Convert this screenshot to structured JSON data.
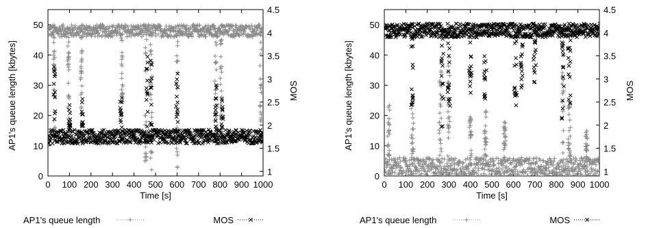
{
  "chart_data": [
    {
      "type": "scatter",
      "xlabel": "Time [s]",
      "ylabel": "AP1's queue length [kbytes]",
      "y2label": "MOS",
      "xlim": [
        0,
        1000
      ],
      "ylim": [
        0,
        55
      ],
      "y2lim": [
        0.9,
        4.5
      ],
      "xticks": [
        "0",
        "100",
        "200",
        "300",
        "400",
        "500",
        "600",
        "700",
        "800",
        "900",
        "1000"
      ],
      "yticks": [
        "0",
        "10",
        "20",
        "30",
        "40",
        "50"
      ],
      "y2ticks": [
        "1",
        "1.5",
        "2",
        "2.5",
        "3",
        "3.5",
        "4",
        "4.5"
      ],
      "legend": [
        {
          "name": "AP1's queue length",
          "color": "#8a8a8a",
          "marker": "+"
        },
        {
          "name": "MOS",
          "color": "#000000",
          "marker": "x"
        }
      ],
      "legend_position": "bottom",
      "series": [
        {
          "name": "AP1's queue length",
          "axis": "left",
          "typical_range": [
            46,
            50
          ],
          "dips": [
            {
              "time": 30,
              "low": 12
            },
            {
              "time": 95,
              "low": 15
            },
            {
              "time": 155,
              "low": 20
            },
            {
              "time": 345,
              "low": 20
            },
            {
              "time": 455,
              "low": 0
            },
            {
              "time": 480,
              "low": 0
            },
            {
              "time": 600,
              "low": 0
            },
            {
              "time": 780,
              "low": 15
            },
            {
              "time": 805,
              "low": 10
            },
            {
              "time": 990,
              "low": 10
            }
          ]
        },
        {
          "name": "MOS",
          "axis": "right",
          "typical_range": [
            1.6,
            1.9
          ],
          "spikes": [
            {
              "time": 30,
              "high": 3.3
            },
            {
              "time": 100,
              "high": 2.5
            },
            {
              "time": 160,
              "high": 2.6
            },
            {
              "time": 340,
              "high": 2.9
            },
            {
              "time": 460,
              "high": 3.9
            },
            {
              "time": 480,
              "high": 3.4
            },
            {
              "time": 600,
              "high": 3.3
            },
            {
              "time": 780,
              "high": 2.9
            },
            {
              "time": 810,
              "high": 2.7
            }
          ]
        }
      ]
    },
    {
      "type": "scatter",
      "xlabel": "Time [s]",
      "ylabel": "AP1's queue length [kbytes]",
      "y2label": "MOS",
      "xlim": [
        0,
        1000
      ],
      "ylim": [
        0,
        55
      ],
      "y2lim": [
        0.9,
        4.5
      ],
      "xticks": [
        "0",
        "100",
        "200",
        "300",
        "400",
        "500",
        "600",
        "700",
        "800",
        "900",
        "1000"
      ],
      "yticks": [
        "0",
        "10",
        "20",
        "30",
        "40",
        "50"
      ],
      "y2ticks": [
        "1",
        "1.5",
        "2",
        "2.5",
        "3",
        "3.5",
        "4",
        "4.5"
      ],
      "legend": [
        {
          "name": "AP1's queue length",
          "color": "#8a8a8a",
          "marker": "+"
        },
        {
          "name": "MOS",
          "color": "#000000",
          "marker": "x"
        }
      ],
      "legend_position": "bottom",
      "series": [
        {
          "name": "AP1's queue length",
          "axis": "left",
          "typical_range": [
            0,
            6
          ],
          "bursts": [
            {
              "time": 20,
              "high": 24
            },
            {
              "time": 130,
              "high": 27
            },
            {
              "time": 260,
              "high": 35
            },
            {
              "time": 300,
              "high": 40
            },
            {
              "time": 400,
              "high": 20
            },
            {
              "time": 470,
              "high": 22
            },
            {
              "time": 560,
              "high": 18
            },
            {
              "time": 830,
              "high": 49
            },
            {
              "time": 860,
              "high": 25
            },
            {
              "time": 940,
              "high": 15
            }
          ]
        },
        {
          "name": "MOS",
          "axis": "right",
          "typical_range": [
            3.9,
            4.2
          ],
          "dips": [
            {
              "time": 130,
              "low": 2.4
            },
            {
              "time": 270,
              "low": 1.9
            },
            {
              "time": 300,
              "low": 2.3
            },
            {
              "time": 400,
              "low": 2.7
            },
            {
              "time": 470,
              "low": 2.5
            },
            {
              "time": 610,
              "low": 2.3
            },
            {
              "time": 640,
              "low": 2.8
            },
            {
              "time": 700,
              "low": 2.9
            },
            {
              "time": 830,
              "low": 2.1
            },
            {
              "time": 860,
              "low": 2.4
            }
          ]
        }
      ]
    }
  ]
}
